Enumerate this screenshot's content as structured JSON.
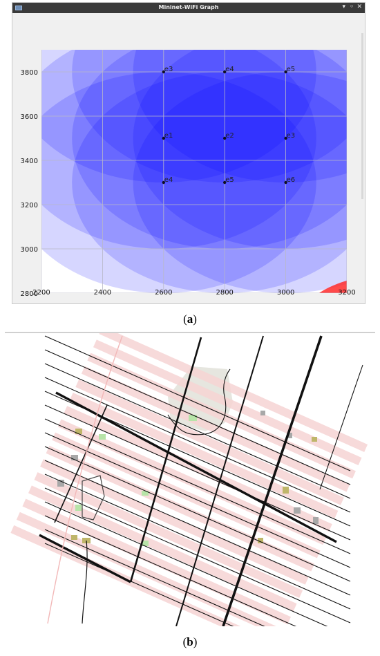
{
  "window": {
    "title": "Mininet-WiFi Graph",
    "controls": {
      "minimize": "▾",
      "restore": "◦",
      "close": "✕"
    }
  },
  "plot": {
    "x_ticks": [
      "2200",
      "2400",
      "2600",
      "2800",
      "3000",
      "3200"
    ],
    "y_ticks": [
      "2800",
      "3000",
      "3200",
      "3400",
      "3600",
      "3800"
    ],
    "xlim": [
      2200,
      3200
    ],
    "ylim": [
      2800,
      3900
    ],
    "range_radius": 500,
    "range_color": "#0000ff",
    "hot_color": "#ff2a2a",
    "grid_color": "#b8b8c8",
    "stations": [
      {
        "label": "e3",
        "x": 2600,
        "y": 3800
      },
      {
        "label": "e4",
        "x": 2800,
        "y": 3800
      },
      {
        "label": "e5",
        "x": 3000,
        "y": 3800
      },
      {
        "label": "e1",
        "x": 2600,
        "y": 3500
      },
      {
        "label": "e2",
        "x": 2800,
        "y": 3500
      },
      {
        "label": "e3",
        "x": 3000,
        "y": 3500
      },
      {
        "label": "e4",
        "x": 2600,
        "y": 3300
      },
      {
        "label": "e5",
        "x": 2800,
        "y": 3300
      },
      {
        "label": "e6",
        "x": 3000,
        "y": 3300
      }
    ]
  },
  "captions": {
    "a": "a",
    "b": "b"
  },
  "map": {
    "road_color": "#111111",
    "block_color": "#f6d3d3",
    "park_color": "#e6e6df",
    "green_color": "#b7e4a8",
    "olive_color": "#bfb66a",
    "gray_color": "#a8a8a8"
  }
}
